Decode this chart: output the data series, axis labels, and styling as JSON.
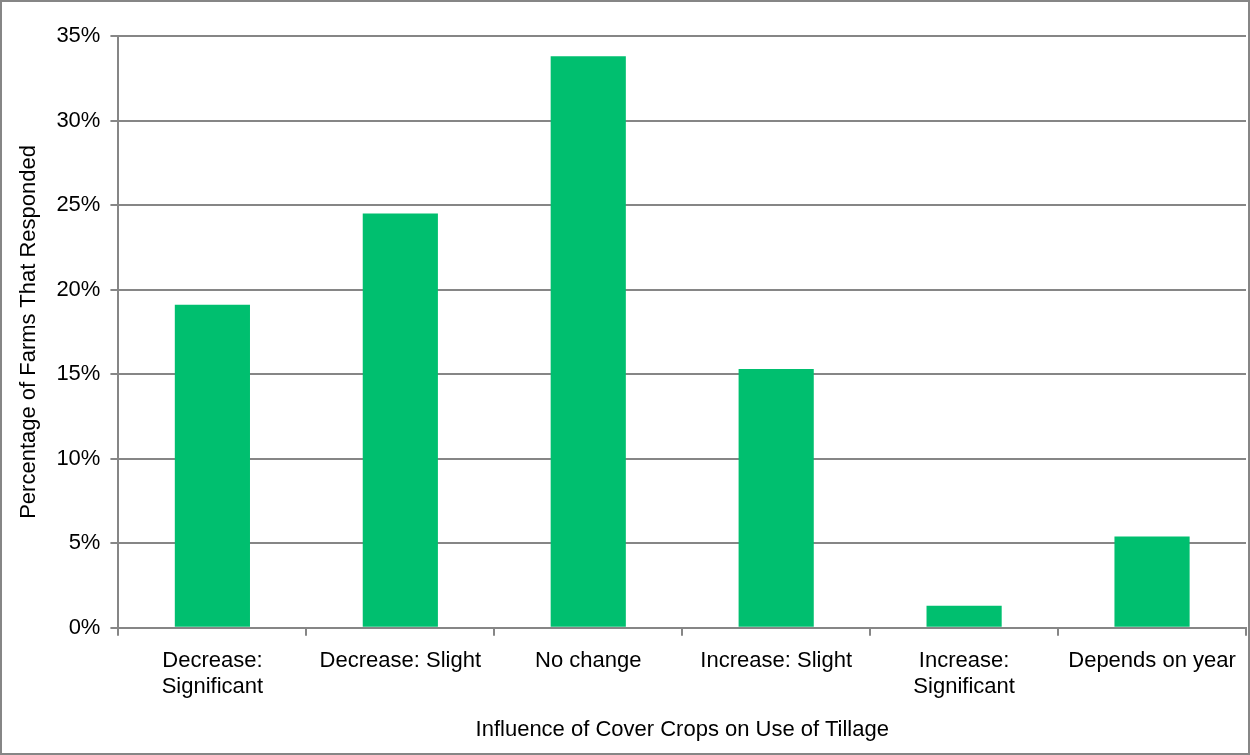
{
  "chart_data": {
    "type": "bar",
    "xlabel": "Influence of Cover Crops on Use of Tillage",
    "ylabel": "Percentage of Farms That Responded",
    "categories": [
      "Decrease: Significant",
      "Decrease: Slight",
      "No change",
      "Increase: Slight",
      "Increase: Significant",
      "Depends on year"
    ],
    "values": [
      19.1,
      24.5,
      33.8,
      15.3,
      1.3,
      5.4
    ],
    "color": "#00bf6f",
    "ylim": [
      0,
      35
    ],
    "yticks": [
      {
        "value": 0,
        "label": "0%"
      },
      {
        "value": 5,
        "label": "5%"
      },
      {
        "value": 10,
        "label": "10%"
      },
      {
        "value": 15,
        "label": "15%"
      },
      {
        "value": 20,
        "label": "20%"
      },
      {
        "value": 25,
        "label": "25%"
      },
      {
        "value": 30,
        "label": "30%"
      },
      {
        "value": 35,
        "label": "35%"
      }
    ],
    "grid": "y",
    "legend": false
  }
}
